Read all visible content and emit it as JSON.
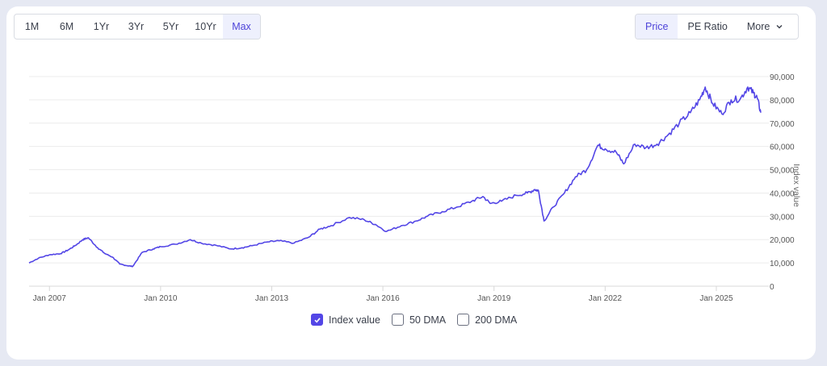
{
  "range_selector": {
    "options": [
      "1M",
      "6M",
      "1Yr",
      "3Yr",
      "5Yr",
      "10Yr",
      "Max"
    ],
    "selected": "Max"
  },
  "metric_selector": {
    "options": [
      "Price",
      "PE Ratio"
    ],
    "more_label": "More",
    "selected": "Price"
  },
  "legend": {
    "items": [
      {
        "label": "Index value",
        "checked": true
      },
      {
        "label": "50 DMA",
        "checked": false
      },
      {
        "label": "200 DMA",
        "checked": false
      }
    ]
  },
  "colors": {
    "line": "#5346e6",
    "accent": "#4e44d9",
    "active_bg": "#eef0fd",
    "grid": "#ececec",
    "page_bg": "#e6e9f3"
  },
  "chart_data": {
    "type": "line",
    "title": "",
    "xlabel": "",
    "ylabel": "Index value",
    "ylim": [
      0,
      90000
    ],
    "yticks": [
      0,
      10000,
      20000,
      30000,
      40000,
      50000,
      60000,
      70000,
      80000,
      90000
    ],
    "ytick_labels": [
      "0",
      "10,000",
      "20,000",
      "30,000",
      "40,000",
      "50,000",
      "60,000",
      "70,000",
      "80,000",
      "90,000"
    ],
    "xticks": [
      2007.0,
      2010.0,
      2013.0,
      2016.0,
      2019.0,
      2022.0,
      2025.0
    ],
    "xtick_labels": [
      "Jan 2007",
      "Jan 2010",
      "Jan 2013",
      "Jan 2016",
      "Jan 2019",
      "Jan 2022",
      "Jan 2025"
    ],
    "xlim": [
      2006.45,
      2026.2
    ],
    "grid": true,
    "legend_position": "bottom",
    "series": [
      {
        "name": "Index value",
        "x": [
          2006.45,
          2006.7,
          2007.0,
          2007.3,
          2007.5,
          2007.7,
          2007.9,
          2008.05,
          2008.3,
          2008.5,
          2008.7,
          2008.9,
          2009.1,
          2009.25,
          2009.5,
          2009.8,
          2010.0,
          2010.4,
          2010.8,
          2011.1,
          2011.5,
          2011.9,
          2012.2,
          2012.5,
          2012.9,
          2013.2,
          2013.6,
          2014.0,
          2014.3,
          2014.6,
          2015.1,
          2015.5,
          2015.8,
          2016.1,
          2016.5,
          2016.9,
          2017.2,
          2017.6,
          2018.0,
          2018.4,
          2018.7,
          2018.9,
          2019.2,
          2019.6,
          2019.9,
          2020.1,
          2020.2,
          2020.35,
          2020.6,
          2020.9,
          2021.2,
          2021.5,
          2021.8,
          2022.0,
          2022.3,
          2022.5,
          2022.8,
          2023.1,
          2023.4,
          2023.7,
          2024.0,
          2024.3,
          2024.55,
          2024.7,
          2024.9,
          2025.15,
          2025.4,
          2025.65,
          2025.85,
          2026.0,
          2026.1,
          2026.2
        ],
        "values": [
          10000,
          12000,
          13500,
          14000,
          15500,
          17500,
          20000,
          20800,
          16500,
          14000,
          12500,
          9500,
          8800,
          8500,
          14500,
          16000,
          17000,
          18000,
          20000,
          18500,
          17500,
          16000,
          16500,
          17500,
          19000,
          19500,
          18500,
          21000,
          24500,
          26000,
          29500,
          28500,
          26500,
          23500,
          26000,
          28000,
          30000,
          32000,
          34000,
          36500,
          38500,
          35500,
          36500,
          39000,
          40000,
          41500,
          41000,
          28000,
          34000,
          40000,
          47000,
          50000,
          60500,
          59000,
          57500,
          52500,
          61000,
          59500,
          61000,
          65000,
          70000,
          74500,
          80000,
          85500,
          78500,
          74000,
          80000,
          80500,
          85500,
          83000,
          81000,
          74500
        ]
      }
    ]
  }
}
